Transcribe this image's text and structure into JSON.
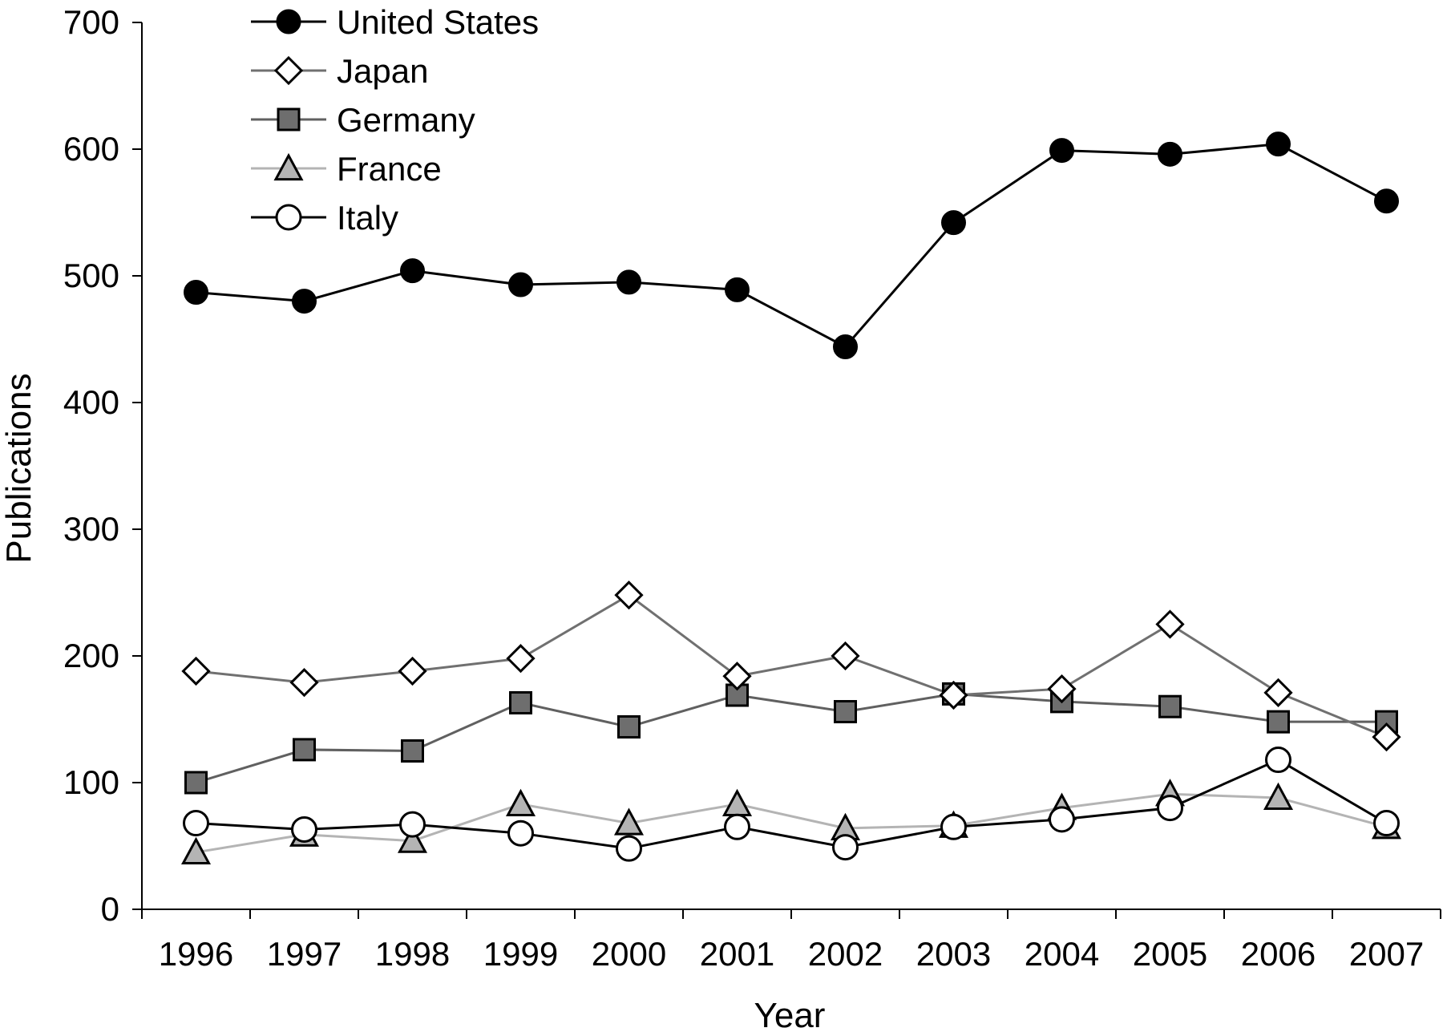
{
  "chart_data": {
    "type": "line",
    "title": "",
    "xlabel": "Year",
    "ylabel": "Publications",
    "ylim": [
      0,
      700
    ],
    "yticks": [
      0,
      100,
      200,
      300,
      400,
      500,
      600,
      700
    ],
    "grid": false,
    "legend_position": "top-left",
    "categories": [
      "1996",
      "1997",
      "1998",
      "1999",
      "2000",
      "2001",
      "2002",
      "2003",
      "2004",
      "2005",
      "2006",
      "2007"
    ],
    "series": [
      {
        "name": "United States",
        "marker": "filled-circle",
        "line_color": "#000000",
        "marker_fill": "#000000",
        "values": [
          487,
          480,
          504,
          493,
          495,
          489,
          444,
          542,
          599,
          596,
          604,
          559
        ]
      },
      {
        "name": "Japan",
        "marker": "diamond",
        "line_color": "#707070",
        "marker_fill": "#ffffff",
        "values": [
          188,
          179,
          188,
          198,
          248,
          184,
          200,
          169,
          174,
          225,
          171,
          136
        ]
      },
      {
        "name": "Germany",
        "marker": "square",
        "line_color": "#606060",
        "marker_fill": "#6e6e6e",
        "values": [
          100,
          126,
          125,
          163,
          144,
          169,
          156,
          170,
          164,
          160,
          148,
          148
        ]
      },
      {
        "name": "France",
        "marker": "triangle",
        "line_color": "#b4b4b4",
        "marker_fill": "#b4b4b4",
        "values": [
          45,
          59,
          54,
          83,
          68,
          83,
          64,
          66,
          80,
          91,
          88,
          65
        ]
      },
      {
        "name": "Italy",
        "marker": "open-circle",
        "line_color": "#000000",
        "marker_fill": "#ffffff",
        "values": [
          68,
          63,
          67,
          60,
          48,
          65,
          49,
          65,
          71,
          80,
          118,
          68
        ]
      }
    ]
  }
}
